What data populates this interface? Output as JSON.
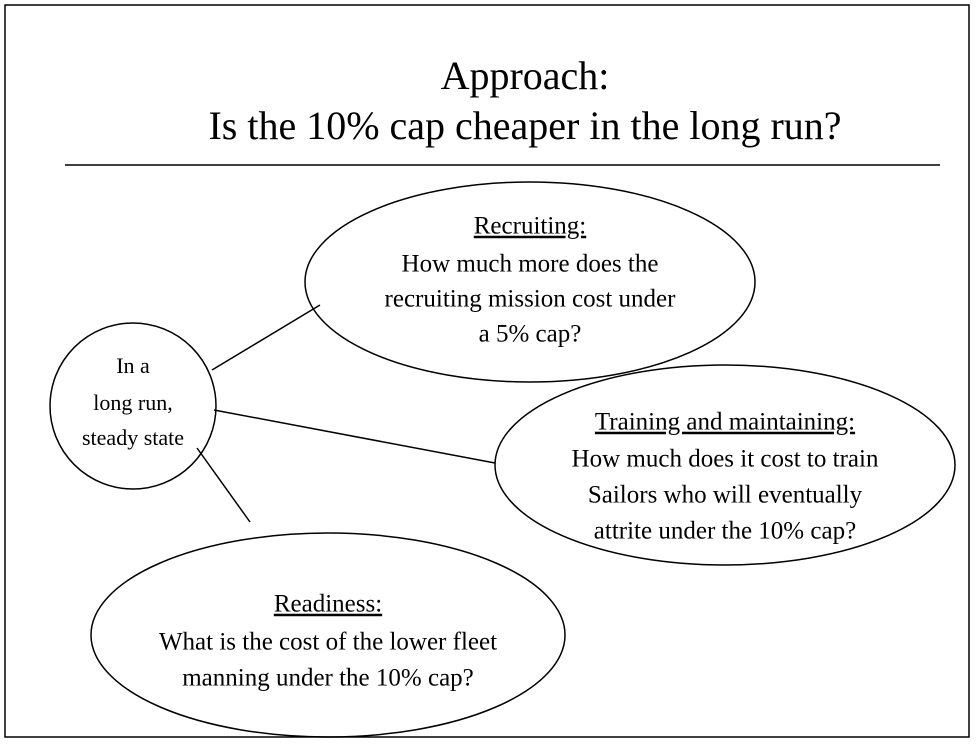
{
  "title": [
    "Approach:",
    "Is the 10% cap cheaper in the long run?"
  ],
  "center": {
    "lines": [
      "In a",
      "long run,",
      "steady state"
    ]
  },
  "nodes": [
    {
      "heading": "Recruiting:",
      "lines": [
        "How much more does the",
        "recruiting mission cost under",
        "a 5% cap?"
      ]
    },
    {
      "heading": "Training and maintaining:",
      "lines": [
        "How much does it cost to train",
        "Sailors who will eventually",
        "attrite under the 10% cap?"
      ]
    },
    {
      "heading": "Readiness:",
      "lines": [
        "What is the cost of the lower fleet",
        "manning under the 10% cap?"
      ]
    }
  ]
}
